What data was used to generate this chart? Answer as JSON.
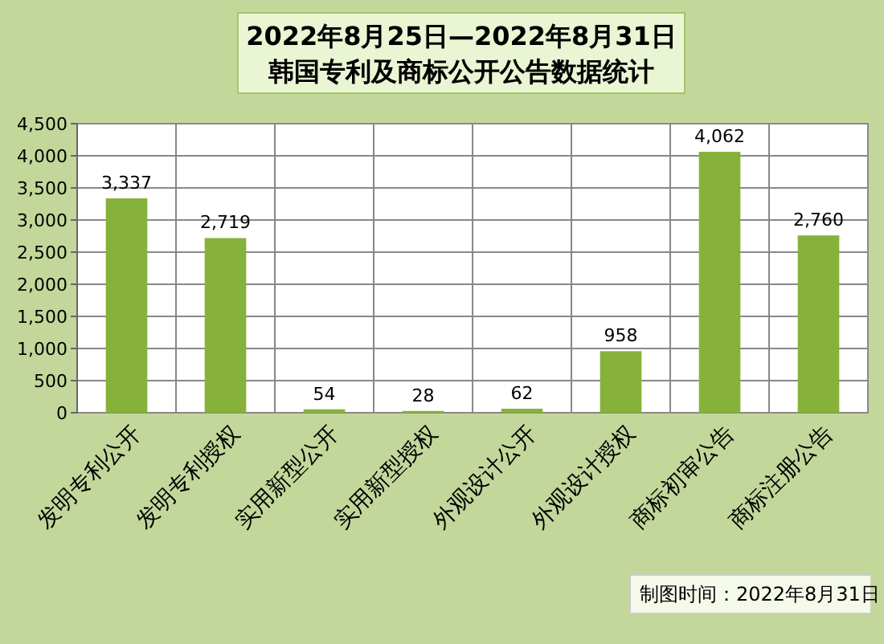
{
  "chart_data": {
    "type": "bar",
    "title": "2022年8月25日—2022年8月31日",
    "subtitle": "韩国专利及商标公开公告数据统计",
    "categories": [
      "发明专利公开",
      "发明专利授权",
      "实用新型公开",
      "实用新型授权",
      "外观设计公开",
      "外观设计授权",
      "商标初审公告",
      "商标注册公告"
    ],
    "values": [
      3337,
      2719,
      54,
      28,
      62,
      958,
      4062,
      2760
    ],
    "value_labels": [
      "3,337",
      "2,719",
      "54",
      "28",
      "62",
      "958",
      "4,062",
      "2,760"
    ],
    "color": "#86b23a",
    "ylim": [
      0,
      4500
    ],
    "yticks": [
      {
        "value": 0,
        "label": "0"
      },
      {
        "value": 500,
        "label": "500"
      },
      {
        "value": 1000,
        "label": "1,000"
      },
      {
        "value": 1500,
        "label": "1,500"
      },
      {
        "value": 2000,
        "label": "2,000"
      },
      {
        "value": 2500,
        "label": "2,500"
      },
      {
        "value": 3000,
        "label": "3,000"
      },
      {
        "value": 3500,
        "label": "3,500"
      },
      {
        "value": 4000,
        "label": "4,000"
      },
      {
        "value": 4500,
        "label": "4,500"
      }
    ],
    "grid": true,
    "annotations": [
      "制图时间：2022年8月31日"
    ]
  }
}
